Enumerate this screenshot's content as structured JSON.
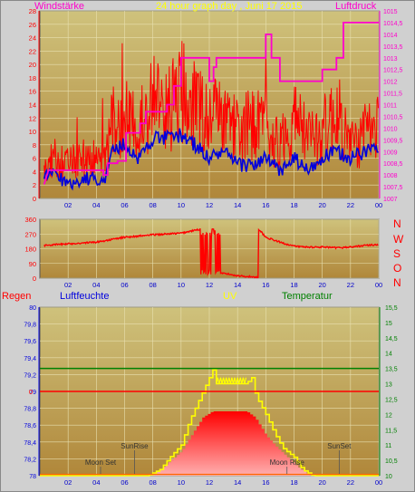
{
  "header": {
    "left_label": "Windstärke",
    "title": "24 hour graph day , Juni 17 2015",
    "right_label": "Luftdruck"
  },
  "bottom_header": {
    "regen": "Regen",
    "luftfeuchte": "Luftfeuchte",
    "uv": "UV",
    "temperatur": "Temperatur"
  },
  "direction_labels": [
    "N",
    "W",
    "S",
    "O",
    "N"
  ],
  "colors": {
    "background": "#d0d0d0",
    "panel_top": "#cdbb73",
    "panel_bottom": "#b08a3c",
    "wind_gust": "#ff0000",
    "wind_avg": "#0000dd",
    "pressure": "#ff00cc",
    "direction": "#ff0000",
    "temperature": "#008000",
    "rain": "#ff0000",
    "uv": "#ffff00",
    "solar": "#ff0000"
  },
  "chart_data": [
    {
      "type": "line",
      "name": "wind-pressure",
      "x_ticks": [
        "02",
        "04",
        "06",
        "08",
        "10",
        "12",
        "14",
        "16",
        "18",
        "20",
        "22",
        "00"
      ],
      "y_left_ticks": [
        "0",
        "2",
        "4",
        "6",
        "8",
        "10",
        "12",
        "14",
        "16",
        "18",
        "20",
        "22",
        "24",
        "26",
        "28"
      ],
      "y_right_ticks": [
        "1007",
        "1007,5",
        "1008",
        "1008,5",
        "1009",
        "1009,5",
        "1010",
        "1010,5",
        "1011",
        "1011,5",
        "1012",
        "1012,5",
        "1013",
        "1013,5",
        "1014",
        "1014,5",
        "1015"
      ],
      "ylim_left": [
        0,
        28
      ],
      "ylim_right": [
        1007,
        1015
      ],
      "xlim": [
        0,
        24
      ],
      "gust_keypoints": [
        [
          0.3,
          4
        ],
        [
          1,
          6
        ],
        [
          2,
          5
        ],
        [
          3,
          6
        ],
        [
          4,
          6
        ],
        [
          4.7,
          6
        ],
        [
          5,
          11
        ],
        [
          6,
          12
        ],
        [
          7,
          10
        ],
        [
          8,
          15
        ],
        [
          9,
          13
        ],
        [
          10,
          16
        ],
        [
          11,
          14
        ],
        [
          12,
          12
        ],
        [
          13,
          13
        ],
        [
          14,
          10
        ],
        [
          15,
          11
        ],
        [
          16,
          11
        ],
        [
          17,
          8
        ],
        [
          18,
          12
        ],
        [
          19,
          9
        ],
        [
          20,
          10
        ],
        [
          21,
          13
        ],
        [
          22,
          8
        ],
        [
          23,
          9
        ],
        [
          24,
          11
        ]
      ],
      "avg_keypoints": [
        [
          0.3,
          3
        ],
        [
          1,
          4
        ],
        [
          2,
          2
        ],
        [
          3,
          3
        ],
        [
          4,
          3
        ],
        [
          4.7,
          3
        ],
        [
          5,
          7
        ],
        [
          6,
          8
        ],
        [
          7,
          6
        ],
        [
          8,
          9
        ],
        [
          9,
          9
        ],
        [
          10,
          9.5
        ],
        [
          11,
          8
        ],
        [
          12,
          6
        ],
        [
          13,
          7
        ],
        [
          14,
          5
        ],
        [
          15,
          5
        ],
        [
          16,
          6
        ],
        [
          17,
          4
        ],
        [
          18,
          6
        ],
        [
          19,
          4
        ],
        [
          20,
          6
        ],
        [
          21,
          7
        ],
        [
          22,
          6
        ],
        [
          23,
          7
        ],
        [
          24,
          8
        ]
      ],
      "pressure_steps": [
        [
          0.3,
          1007.6
        ],
        [
          0.6,
          1008.2
        ],
        [
          3.2,
          1008.2
        ],
        [
          3.2,
          1008.2
        ],
        [
          4.5,
          1008.2
        ],
        [
          4.5,
          1008.0
        ],
        [
          4.8,
          1008.0
        ],
        [
          4.8,
          1008.5
        ],
        [
          5.5,
          1008.5
        ],
        [
          5.5,
          1008.6
        ],
        [
          6.1,
          1008.6
        ],
        [
          6.1,
          1009.8
        ],
        [
          7.1,
          1009.8
        ],
        [
          7.1,
          1010.2
        ],
        [
          7.5,
          1010.2
        ],
        [
          7.5,
          1010.7
        ],
        [
          9.0,
          1010.7
        ],
        [
          9.0,
          1011.0
        ],
        [
          9.5,
          1011.0
        ],
        [
          9.5,
          1011.8
        ],
        [
          10.0,
          1011.8
        ],
        [
          10.0,
          1013.0
        ],
        [
          12.0,
          1013.0
        ],
        [
          12.0,
          1012.0
        ],
        [
          12.3,
          1012.0
        ],
        [
          12.3,
          1012.6
        ],
        [
          12.5,
          1012.6
        ],
        [
          12.5,
          1013.0
        ],
        [
          16.0,
          1013.0
        ],
        [
          16.0,
          1014.0
        ],
        [
          16.4,
          1014.0
        ],
        [
          16.4,
          1013.0
        ],
        [
          17.0,
          1013.0
        ],
        [
          17.0,
          1012.0
        ],
        [
          20.0,
          1012.0
        ],
        [
          20.0,
          1012.5
        ],
        [
          21.0,
          1012.5
        ],
        [
          21.0,
          1013.0
        ],
        [
          21.5,
          1013.0
        ],
        [
          21.5,
          1014.5
        ],
        [
          24.0,
          1014.5
        ]
      ]
    },
    {
      "type": "line",
      "name": "wind-direction",
      "x_ticks": [
        "02",
        "04",
        "06",
        "08",
        "10",
        "12",
        "14",
        "16",
        "18",
        "20",
        "22",
        "00"
      ],
      "y_ticks": [
        "0",
        "90",
        "180",
        "270",
        "360"
      ],
      "ylim": [
        0,
        360
      ],
      "xlim": [
        0,
        24
      ],
      "keypoints": [
        [
          0.3,
          200
        ],
        [
          2,
          210
        ],
        [
          4,
          220
        ],
        [
          6,
          250
        ],
        [
          8,
          265
        ],
        [
          10,
          275
        ],
        [
          11.4,
          300
        ],
        [
          11.5,
          30
        ],
        [
          11.8,
          270
        ],
        [
          12.1,
          30
        ],
        [
          12.3,
          260
        ],
        [
          12.6,
          20
        ],
        [
          13,
          30
        ],
        [
          14,
          15
        ],
        [
          15,
          8
        ],
        [
          15.5,
          5
        ],
        [
          15.5,
          300
        ],
        [
          16,
          250
        ],
        [
          17,
          220
        ],
        [
          18,
          195
        ],
        [
          19,
          190
        ],
        [
          20,
          190
        ],
        [
          21,
          185
        ],
        [
          22,
          190
        ],
        [
          23,
          200
        ],
        [
          24,
          205
        ]
      ]
    },
    {
      "type": "area",
      "name": "rain-humidity-uv-temperature",
      "x_ticks": [
        "02",
        "04",
        "06",
        "08",
        "10",
        "12",
        "14",
        "16",
        "18",
        "20",
        "22",
        "00"
      ],
      "y_humidity_ticks": [
        "78",
        "78,2",
        "78,4",
        "78,6",
        "78,8",
        "79",
        "79,2",
        "79,4",
        "79,6",
        "79,8",
        "80"
      ],
      "y_uv_ticks": [
        "10",
        "10,5",
        "11",
        "11,5",
        "12",
        "12,5",
        "13",
        "13,5",
        "14",
        "14,5",
        "15",
        "15,5"
      ],
      "rain_label": "0",
      "rain_value": 0,
      "temperature_value": 13.5,
      "ylim_uv": [
        10,
        15.5
      ],
      "ylim_humidity": [
        78,
        80
      ],
      "xlim": [
        0,
        24
      ],
      "uv_keypoints": [
        [
          0,
          10
        ],
        [
          7.6,
          10
        ],
        [
          8.5,
          10.2
        ],
        [
          9.2,
          10.6
        ],
        [
          10.0,
          11.0
        ],
        [
          10.6,
          11.8
        ],
        [
          11.4,
          12.6
        ],
        [
          12.0,
          13.2
        ],
        [
          12.3,
          13.5
        ],
        [
          12.5,
          13.0
        ],
        [
          14.6,
          13.0
        ],
        [
          15.0,
          13.2
        ],
        [
          15.3,
          12.6
        ],
        [
          16.0,
          12.0
        ],
        [
          16.6,
          11.4
        ],
        [
          17.2,
          10.9
        ],
        [
          18.0,
          10.6
        ],
        [
          18.6,
          10.2
        ],
        [
          19.3,
          10.0
        ],
        [
          24,
          10
        ]
      ],
      "solar_keypoints": [
        [
          7.5,
          10
        ],
        [
          8.2,
          10.1
        ],
        [
          9.0,
          10.4
        ],
        [
          10.0,
          10.8
        ],
        [
          10.8,
          11.4
        ],
        [
          11.5,
          11.9
        ],
        [
          12.2,
          12.1
        ],
        [
          14.6,
          12.1
        ],
        [
          15.2,
          11.9
        ],
        [
          16.0,
          11.3
        ],
        [
          16.8,
          10.9
        ],
        [
          17.5,
          10.6
        ],
        [
          18.2,
          10.3
        ],
        [
          18.8,
          10.1
        ],
        [
          19.2,
          10
        ]
      ],
      "annotations": [
        {
          "text": "SunRise",
          "hour": 6.7
        },
        {
          "text": "Moon Set",
          "hour": 4.3
        },
        {
          "text": "Moon Rise",
          "hour": 17.5
        },
        {
          "text": "SunSet",
          "hour": 21.2
        }
      ]
    }
  ]
}
